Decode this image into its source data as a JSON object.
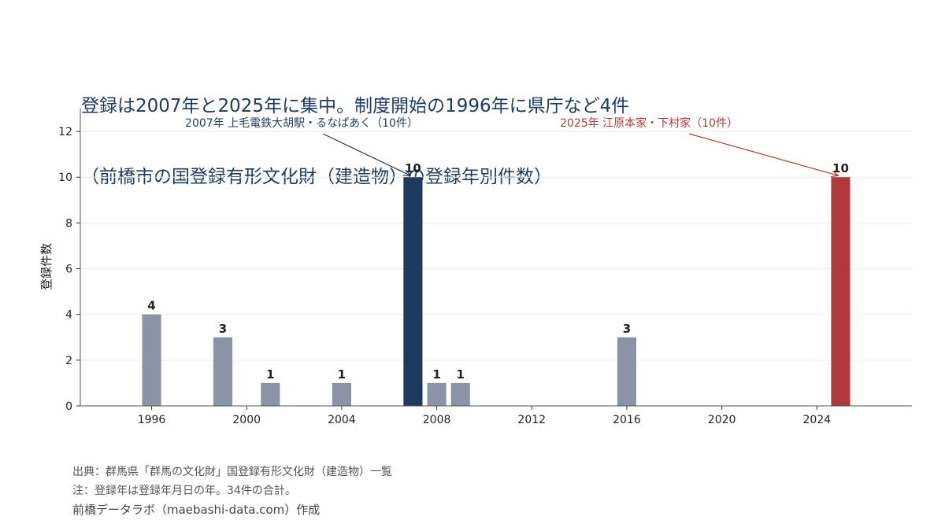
{
  "title": {
    "line1": "登録は2007年と2025年に集中。制度開始の1996年に県庁など4件",
    "line2": "（前橋市の国登録有形文化財（建造物）の登録年別件数）"
  },
  "chart_data": {
    "type": "bar",
    "xlabel": "",
    "ylabel": "登録件数",
    "xlim": [
      1993,
      2028
    ],
    "ylim": [
      0,
      13
    ],
    "xticks": [
      1996,
      2000,
      2004,
      2008,
      2012,
      2016,
      2020,
      2024
    ],
    "yticks": [
      0,
      2,
      4,
      6,
      8,
      10,
      12
    ],
    "grid": true,
    "bars": [
      {
        "x": 1996,
        "value": 4,
        "color": "#8a94a6"
      },
      {
        "x": 1999,
        "value": 3,
        "color": "#8a94a6"
      },
      {
        "x": 2001,
        "value": 1,
        "color": "#8a94a6"
      },
      {
        "x": 2004,
        "value": 1,
        "color": "#8a94a6"
      },
      {
        "x": 2007,
        "value": 10,
        "color": "#1f3a5f"
      },
      {
        "x": 2008,
        "value": 1,
        "color": "#8a94a6"
      },
      {
        "x": 2009,
        "value": 1,
        "color": "#8a94a6"
      },
      {
        "x": 2016,
        "value": 3,
        "color": "#8a94a6"
      },
      {
        "x": 2025,
        "value": 10,
        "color": "#b03a3a"
      }
    ],
    "annotations": [
      {
        "text": "2007年 上毛電鉄大胡駅・るなぱあく（10件）",
        "target_x": 2007,
        "target_y": 10,
        "color": "#1f3a5f"
      },
      {
        "text": "2025年 江原本家・下村家（10件）",
        "target_x": 2025,
        "target_y": 10,
        "color": "#b03a3a"
      }
    ]
  },
  "footer": {
    "source": "出典：群馬県「群馬の文化財」国登録有形文化財（建造物）一覧",
    "note": "注：登録年は登録年月日の年。34件の合計。",
    "credit": "前橋データラボ（maebashi-data.com）作成"
  }
}
